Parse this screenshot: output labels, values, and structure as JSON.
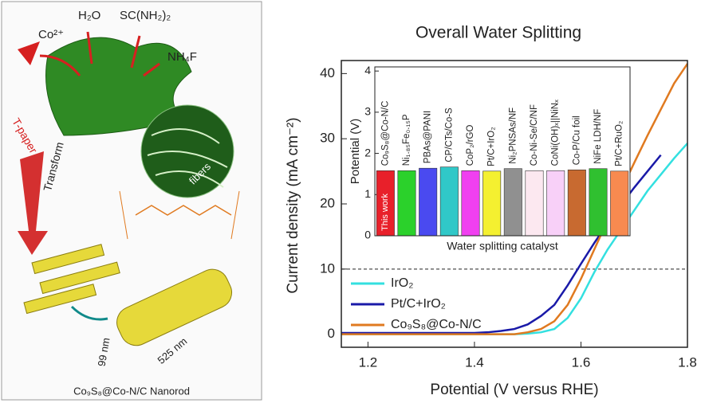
{
  "schematic": {
    "labels": [
      "Co²⁺",
      "H₂O",
      "SC(NH₂)₂",
      "NH₄F",
      "T-paper",
      "fibers",
      "Transform",
      "99 nm",
      "525 nm",
      "Co₉S₈@Co-N/C Nanorod"
    ]
  },
  "chart_data": [
    {
      "type": "line",
      "title": "Overall Water Splitting",
      "x_label": "Potential (V versus RHE)",
      "y_label": "Current density (mA cm⁻²)",
      "x": [
        1.15,
        1.175,
        1.2,
        1.225,
        1.25,
        1.275,
        1.3,
        1.325,
        1.35,
        1.375,
        1.4,
        1.425,
        1.45,
        1.475,
        1.5,
        1.525,
        1.55,
        1.575,
        1.6,
        1.625,
        1.65,
        1.675,
        1.7,
        1.725,
        1.75,
        1.775,
        1.8
      ],
      "series": [
        {
          "name": "IrO₂",
          "color": "#33e0e0",
          "values": [
            0,
            0,
            0,
            0,
            0,
            0,
            0,
            0,
            0,
            0,
            0,
            0,
            0,
            0,
            0.1,
            0.3,
            0.8,
            2.5,
            5.5,
            9.5,
            13,
            16,
            19,
            22,
            24.5,
            27,
            29.3
          ]
        },
        {
          "name": "Pt/C+IrO₂",
          "color": "#1a1aa8",
          "values": [
            0.2,
            0.2,
            0.2,
            0.2,
            0.2,
            0.2,
            0.2,
            0.2,
            0.2,
            0.2,
            0.2,
            0.3,
            0.5,
            0.8,
            1.5,
            2.8,
            4.5,
            7.5,
            10.8,
            14,
            17,
            19.8,
            22.5,
            25,
            27.5,
            null,
            null
          ]
        },
        {
          "name": "Co₉S₈@Co-N/C",
          "color": "#e07a20",
          "values": [
            0,
            0,
            0,
            0,
            0,
            0,
            0,
            0,
            0,
            0,
            0,
            0,
            0,
            0,
            0.3,
            0.8,
            2,
            4.5,
            8.5,
            13,
            17.5,
            22,
            26.3,
            30.5,
            34.5,
            38.5,
            41.5
          ]
        }
      ],
      "xlim": [
        1.15,
        1.8
      ],
      "ylim": [
        -2,
        42
      ],
      "xticks": [
        1.2,
        1.4,
        1.6,
        1.8
      ],
      "yticks": [
        0,
        10,
        20,
        30,
        40
      ],
      "hline": 10,
      "legend": "lower-left"
    },
    {
      "type": "bar",
      "x_label": "Water splitting catalyst",
      "y_label": "Potential (V)",
      "annotation": "This work",
      "categories": [
        "Co₉S₈@Co-N/C",
        "Ni₁.₈₅Fe₀.₁₅P",
        "PBAs@PANI",
        "CP/CTs/Co-S",
        "CoP₂/rGO",
        "Pt/C+IrO₂",
        "Ni₂PNSAs/NF",
        "Co-Ni-Se/C/NF",
        "CoNi(OH)ₓ||NiNₓ",
        "Co-P/Cu foil",
        "NiFe LDH/NF",
        "Pt/C+RuO₂"
      ],
      "values": [
        1.58,
        1.58,
        1.64,
        1.67,
        1.58,
        1.57,
        1.63,
        1.58,
        1.58,
        1.6,
        1.63,
        1.57
      ],
      "colors": [
        "#e8202a",
        "#2bd12b",
        "#4a4af0",
        "#30c8c8",
        "#f040f0",
        "#f4f030",
        "#909090",
        "#fce8f0",
        "#f8d0f8",
        "#c86a30",
        "#30c030",
        "#f88a50"
      ],
      "ylim": [
        0,
        4.1
      ],
      "yticks": [
        0,
        1,
        2,
        3,
        4
      ]
    }
  ]
}
